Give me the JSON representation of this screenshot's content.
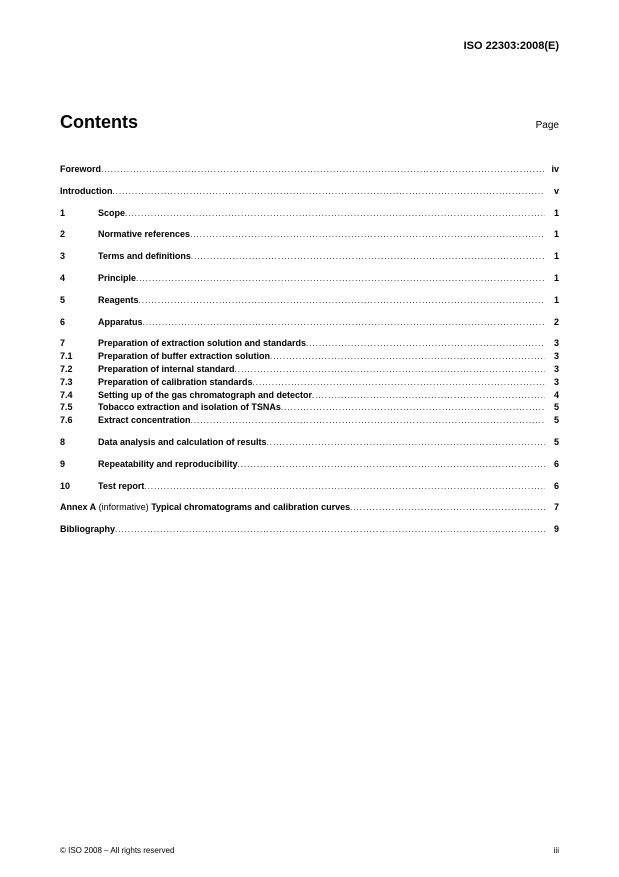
{
  "header": "ISO 22303:2008(E)",
  "contents_label": "Contents",
  "page_label": "Page",
  "toc": [
    {
      "group": [
        {
          "num": "",
          "title": "Foreword",
          "page": "iv",
          "bold": true,
          "noindent": true
        }
      ]
    },
    {
      "group": [
        {
          "num": "",
          "title": "Introduction",
          "page": "v",
          "bold": true,
          "noindent": true
        }
      ]
    },
    {
      "group": [
        {
          "num": "1",
          "title": "Scope",
          "page": "1",
          "bold": true
        }
      ]
    },
    {
      "group": [
        {
          "num": "2",
          "title": "Normative references",
          "page": "1",
          "bold": true
        }
      ]
    },
    {
      "group": [
        {
          "num": "3",
          "title": "Terms and definitions",
          "page": "1",
          "bold": true
        }
      ]
    },
    {
      "group": [
        {
          "num": "4",
          "title": "Principle",
          "page": "1",
          "bold": true
        }
      ]
    },
    {
      "group": [
        {
          "num": "5",
          "title": "Reagents",
          "page": "1",
          "bold": true
        }
      ]
    },
    {
      "group": [
        {
          "num": "6",
          "title": "Apparatus",
          "page": "2",
          "bold": true
        }
      ]
    },
    {
      "group": [
        {
          "num": "7",
          "title": "Preparation of extraction solution and standards",
          "page": "3",
          "bold": true
        },
        {
          "num": "7.1",
          "title": "Preparation of buffer extraction solution",
          "page": "3",
          "bold": true
        },
        {
          "num": "7.2",
          "title": "Preparation of internal standard",
          "page": "3",
          "bold": true
        },
        {
          "num": "7.3",
          "title": "Preparation of calibration standards",
          "page": "3",
          "bold": true
        },
        {
          "num": "7.4",
          "title": "Setting up of the gas chromatograph and detector",
          "page": "4",
          "bold": true
        },
        {
          "num": "7.5",
          "title": "Tobacco extraction and isolation of TSNAs",
          "page": "5",
          "bold": true
        },
        {
          "num": "7.6",
          "title": "Extract concentration",
          "page": "5",
          "bold": true
        }
      ]
    },
    {
      "group": [
        {
          "num": "8",
          "title": "Data analysis and calculation of results",
          "page": "5",
          "bold": true
        }
      ]
    },
    {
      "group": [
        {
          "num": "9",
          "title": "Repeatability and reproducibility",
          "page": "6",
          "bold": true
        }
      ]
    },
    {
      "group": [
        {
          "num": "10",
          "title": "Test report",
          "page": "6",
          "bold": true
        }
      ]
    },
    {
      "group": [
        {
          "num": "",
          "title_pre": "Annex A",
          "title_mid": " (informative)  ",
          "title": "Typical chromatograms and calibration curves",
          "page": "7",
          "bold": true,
          "annex": true,
          "noindent": true
        }
      ]
    },
    {
      "group": [
        {
          "num": "",
          "title": "Bibliography",
          "page": "9",
          "bold": true,
          "noindent": true
        }
      ]
    }
  ],
  "footer_left": "© ISO 2008 – All rights reserved",
  "footer_right": "iii"
}
